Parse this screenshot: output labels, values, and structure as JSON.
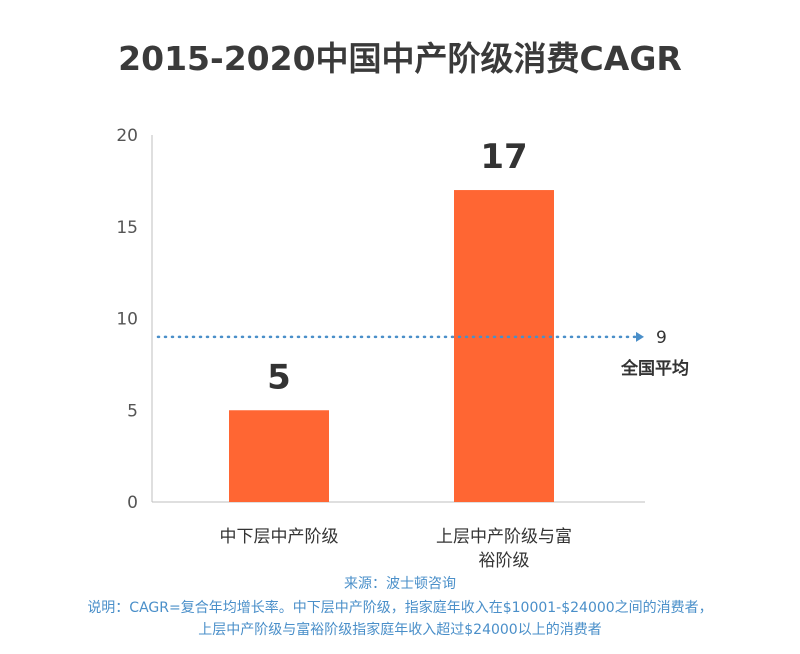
{
  "chart_data": {
    "type": "bar",
    "title": "2015-2020中国中产阶级消费CAGR",
    "categories": [
      [
        "中下层中产阶级"
      ],
      [
        "上层中产阶级与富",
        "裕阶级"
      ]
    ],
    "values": [
      5,
      17
    ],
    "data_labels": [
      "5",
      "17"
    ],
    "ylim": [
      0,
      20
    ],
    "yticks": [
      "0",
      "5",
      "10",
      "15",
      "20"
    ],
    "ytick_values": [
      0,
      5,
      10,
      15,
      20
    ],
    "reference_line": {
      "value": 9,
      "label": "9",
      "name": "全国平均"
    },
    "bar_color": "#ff6633",
    "reference_color": "#4a8fc9",
    "grid": false
  },
  "footer": {
    "source": "来源：波士顿咨询",
    "note_line1": "说明：CAGR=复合年均增长率。中下层中产阶级，指家庭年收入在$10001-$24000之间的消费者，",
    "note_line2": "上层中产阶级与富裕阶级指家庭年收入超过$24000以上的消费者"
  }
}
